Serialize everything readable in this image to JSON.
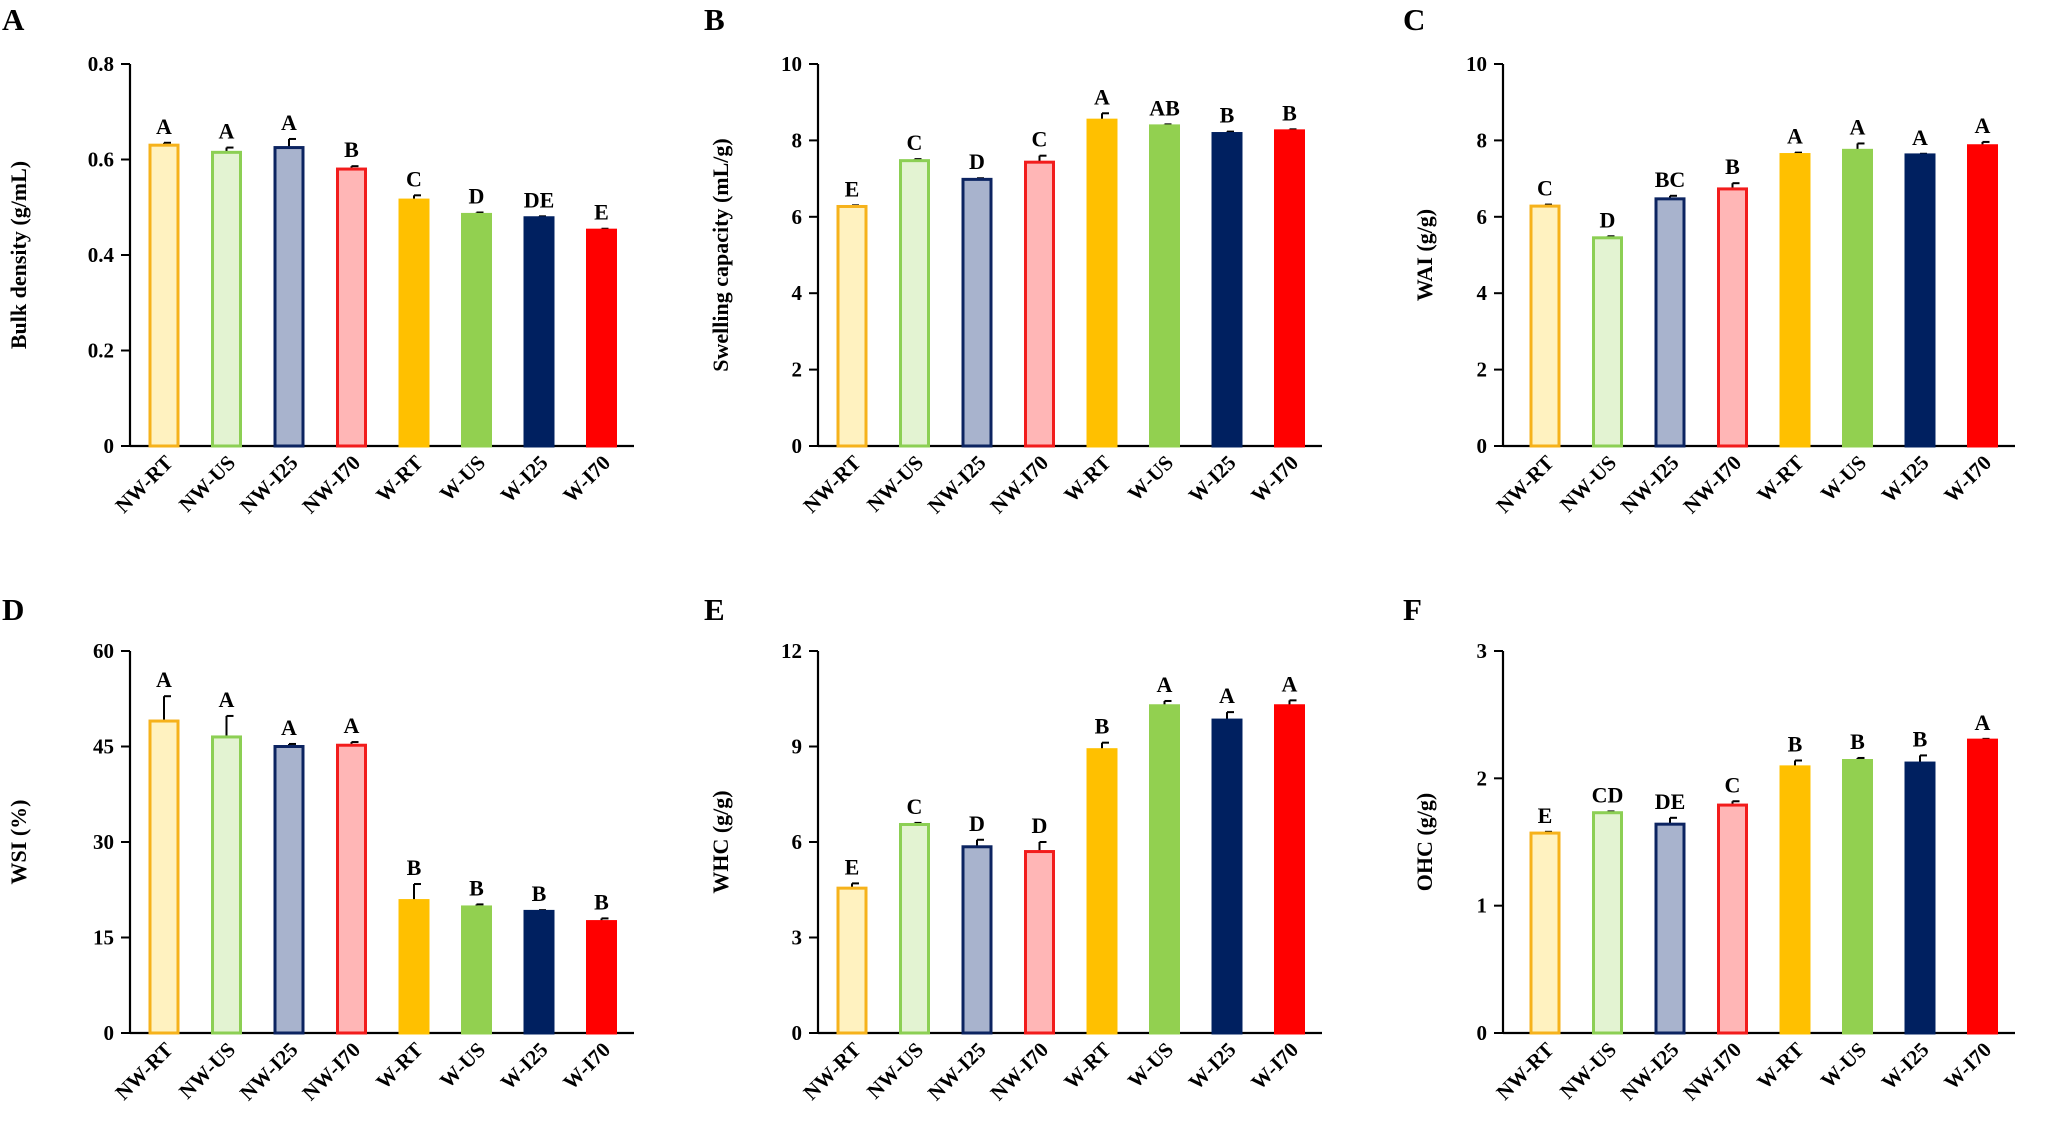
{
  "styles": {
    "NW-RT": {
      "fill": "#FFF2C0",
      "stroke": "#F6B21B"
    },
    "NW-US": {
      "fill": "#E3F3D2",
      "stroke": "#8CCF54"
    },
    "NW-I25": {
      "fill": "#A8B3CD",
      "stroke": "#0C2461"
    },
    "NW-I70": {
      "fill": "#FFB6B6",
      "stroke": "#F21C1C"
    },
    "W-RT": {
      "fill": "#FFC000",
      "stroke": "#FFC000"
    },
    "W-US": {
      "fill": "#92D050",
      "stroke": "#92D050"
    },
    "W-I25": {
      "fill": "#002060",
      "stroke": "#002060"
    },
    "W-I70": {
      "fill": "#FF0000",
      "stroke": "#FF0000"
    }
  },
  "chart_data": [
    {
      "panel": "A",
      "type": "bar",
      "ylabel": "Bulk density (g/mL)",
      "ylim": [
        0,
        0.8
      ],
      "ticks": [
        "0",
        "0.2",
        "0.4",
        "0.6",
        "0.8"
      ],
      "categories": [
        "NW-RT",
        "NW-US",
        "NW-I25",
        "NW-I70",
        "W-RT",
        "W-US",
        "W-I25",
        "W-I70"
      ],
      "values": [
        0.63,
        0.615,
        0.625,
        0.58,
        0.515,
        0.485,
        0.478,
        0.452
      ],
      "errors": [
        0.005,
        0.01,
        0.018,
        0.006,
        0.01,
        0.004,
        0.003,
        0.003
      ],
      "letters": [
        "A",
        "A",
        "A",
        "B",
        "C",
        "D",
        "DE",
        "E"
      ]
    },
    {
      "panel": "B",
      "type": "bar",
      "ylabel": "Swelling capacity (mL/g)",
      "ylim": [
        0,
        10
      ],
      "ticks": [
        "0",
        "2",
        "4",
        "6",
        "8",
        "10"
      ],
      "categories": [
        "NW-RT",
        "NW-US",
        "NW-I25",
        "NW-I70",
        "W-RT",
        "W-US",
        "W-I25",
        "W-I70"
      ],
      "values": [
        6.27,
        7.47,
        6.98,
        7.43,
        8.53,
        8.38,
        8.18,
        8.25
      ],
      "errors": [
        0.03,
        0.04,
        0.03,
        0.17,
        0.18,
        0.04,
        0.05,
        0.04
      ],
      "letters": [
        "E",
        "C",
        "D",
        "C",
        "A",
        "AB",
        "B",
        "B"
      ]
    },
    {
      "panel": "C",
      "type": "bar",
      "ylabel": "WAI (g/g)",
      "ylim": [
        0,
        10
      ],
      "ticks": [
        "0",
        "2",
        "4",
        "6",
        "8",
        "10"
      ],
      "categories": [
        "NW-RT",
        "NW-US",
        "NW-I25",
        "NW-I70",
        "W-RT",
        "W-US",
        "W-I25",
        "W-I70"
      ],
      "values": [
        6.28,
        5.45,
        6.47,
        6.73,
        7.63,
        7.74,
        7.62,
        7.86
      ],
      "errors": [
        0.04,
        0.04,
        0.08,
        0.15,
        0.05,
        0.18,
        0.03,
        0.1
      ],
      "letters": [
        "C",
        "D",
        "BC",
        "B",
        "A",
        "A",
        "A",
        "A"
      ]
    },
    {
      "panel": "D",
      "type": "bar",
      "ylabel": "WSI (%)",
      "ylim": [
        0,
        60
      ],
      "ticks": [
        "0",
        "15",
        "30",
        "45",
        "60"
      ],
      "categories": [
        "NW-RT",
        "NW-US",
        "NW-I25",
        "NW-I70",
        "W-RT",
        "W-US",
        "W-I25",
        "W-I70"
      ],
      "values": [
        49.0,
        46.5,
        45.0,
        45.2,
        20.8,
        19.8,
        19.1,
        17.5
      ],
      "errors": [
        3.9,
        3.3,
        0.4,
        0.5,
        2.6,
        0.4,
        0.2,
        0.5
      ],
      "letters": [
        "A",
        "A",
        "A",
        "A",
        "B",
        "B",
        "B",
        "B"
      ]
    },
    {
      "panel": "E",
      "type": "bar",
      "ylabel": "WHC (g/g)",
      "ylim": [
        0,
        12
      ],
      "ticks": [
        "0",
        "3",
        "6",
        "9",
        "12"
      ],
      "categories": [
        "NW-RT",
        "NW-US",
        "NW-I25",
        "NW-I70",
        "W-RT",
        "W-US",
        "W-I25",
        "W-I70"
      ],
      "values": [
        4.55,
        6.55,
        5.85,
        5.7,
        8.9,
        10.28,
        9.83,
        10.28
      ],
      "errors": [
        0.15,
        0.05,
        0.22,
        0.3,
        0.22,
        0.15,
        0.25,
        0.17
      ],
      "letters": [
        "E",
        "C",
        "D",
        "D",
        "B",
        "A",
        "A",
        "A"
      ]
    },
    {
      "panel": "F",
      "type": "bar",
      "ylabel": "OHC (g/g)",
      "ylim": [
        0,
        3
      ],
      "ticks": [
        "0",
        "1",
        "2",
        "3"
      ],
      "categories": [
        "NW-RT",
        "NW-US",
        "NW-I25",
        "NW-I70",
        "W-RT",
        "W-US",
        "W-I25",
        "W-I70"
      ],
      "values": [
        1.57,
        1.73,
        1.64,
        1.79,
        2.09,
        2.14,
        2.12,
        2.3
      ],
      "errors": [
        0.01,
        0.01,
        0.05,
        0.03,
        0.05,
        0.02,
        0.06,
        0.01
      ],
      "letters": [
        "E",
        "CD",
        "DE",
        "C",
        "B",
        "B",
        "B",
        "A"
      ]
    }
  ]
}
